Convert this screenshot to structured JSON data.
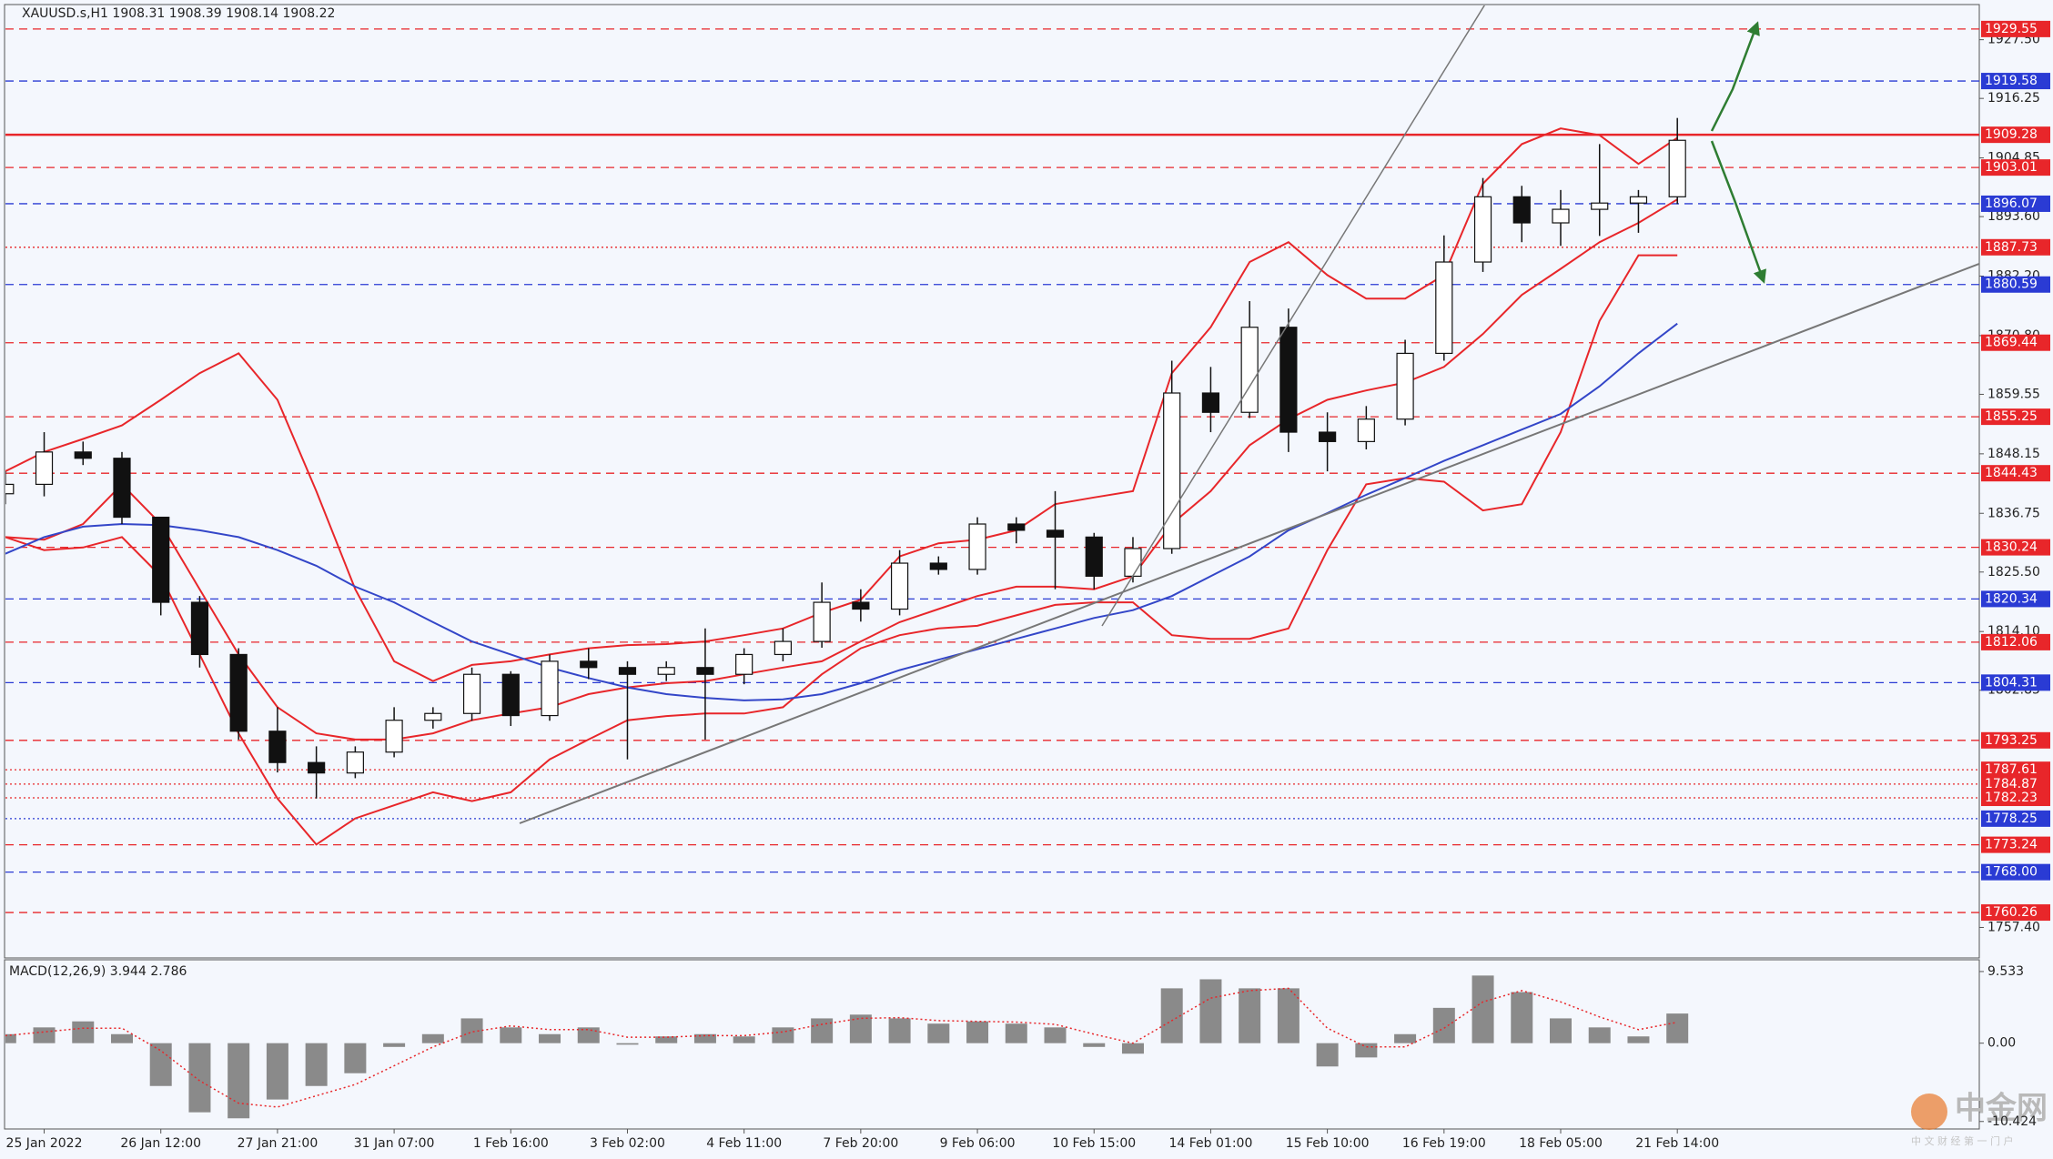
{
  "chart_data": [
    {
      "type": "candlestick",
      "symbol": "XAUUSD.s,H1",
      "quote": [
        1908.31,
        1908.39,
        1908.14,
        1908.22
      ],
      "categories": [
        null,
        "25 Jan 2022",
        null,
        null,
        "26 Jan 12:00",
        null,
        null,
        "27 Jan 21:00",
        null,
        null,
        "31 Jan 07:00",
        null,
        null,
        "1 Feb 16:00",
        null,
        null,
        "3 Feb 02:00",
        null,
        null,
        "4 Feb 11:00",
        null,
        null,
        "7 Feb 20:00",
        null,
        null,
        "9 Feb 06:00",
        null,
        null,
        "10 Feb 15:00",
        null,
        null,
        "14 Feb 01:00",
        null,
        null,
        "15 Feb 10:00",
        null,
        null,
        "16 Feb 19:00",
        null,
        null,
        "18 Feb 05:00",
        null,
        null,
        "21 Feb 14:00"
      ],
      "ohlc": [
        [
          1840.5,
          1844.8,
          1838.5,
          1842.3
        ],
        [
          1842.3,
          1852.3,
          1840,
          1848.5
        ],
        [
          1848.5,
          1850.5,
          1846,
          1847.3
        ],
        [
          1847.3,
          1848.5,
          1834.7,
          1836
        ],
        [
          1836,
          1836,
          1817.2,
          1819.7
        ],
        [
          1819.7,
          1820.9,
          1807.2,
          1809.7
        ],
        [
          1809.7,
          1810.9,
          1793.4,
          1795
        ],
        [
          1795,
          1799.6,
          1787.1,
          1789
        ],
        [
          1789,
          1792.1,
          1782.1,
          1787
        ],
        [
          1787,
          1792.1,
          1786,
          1791
        ],
        [
          1791,
          1799.6,
          1790,
          1797.1
        ],
        [
          1797.1,
          1799.6,
          1795.5,
          1798.4
        ],
        [
          1798.4,
          1807.2,
          1797,
          1805.9
        ],
        [
          1805.9,
          1806.5,
          1796,
          1798
        ],
        [
          1798,
          1809.7,
          1797,
          1808.4
        ],
        [
          1808.4,
          1810.9,
          1805,
          1807.2
        ],
        [
          1807.2,
          1808.4,
          1789.6,
          1805.9
        ],
        [
          1805.9,
          1808.4,
          1804.6,
          1807.2
        ],
        [
          1807.2,
          1814.7,
          1793.4,
          1805.9
        ],
        [
          1805.9,
          1810.9,
          1804,
          1809.7
        ],
        [
          1809.7,
          1814.7,
          1808.4,
          1812.2
        ],
        [
          1812.2,
          1823.5,
          1811,
          1819.7
        ],
        [
          1819.7,
          1822.2,
          1816,
          1818.4
        ],
        [
          1818.4,
          1829.7,
          1817.2,
          1827.2
        ],
        [
          1827.2,
          1828.5,
          1825,
          1826
        ],
        [
          1826,
          1836,
          1825,
          1834.7
        ],
        [
          1834.7,
          1836,
          1831,
          1833.5
        ],
        [
          1833.5,
          1841,
          1822.2,
          1832.2
        ],
        [
          1832.2,
          1833,
          1822.2,
          1824.7
        ],
        [
          1824.7,
          1832.2,
          1823.5,
          1830
        ],
        [
          1830,
          1866,
          1829,
          1859.8
        ],
        [
          1859.8,
          1864.8,
          1852.3,
          1856.1
        ],
        [
          1856.1,
          1877.4,
          1855,
          1872.4
        ],
        [
          1872.4,
          1876,
          1848.5,
          1852.3
        ],
        [
          1852.3,
          1856.1,
          1844.8,
          1850.5
        ],
        [
          1850.5,
          1857.3,
          1849,
          1854.8
        ],
        [
          1854.8,
          1870,
          1853.6,
          1867.4
        ],
        [
          1867.4,
          1890,
          1866,
          1884.9
        ],
        [
          1884.9,
          1901,
          1883,
          1897.4
        ],
        [
          1897.4,
          1899.5,
          1888.7,
          1892.4
        ],
        [
          1892.4,
          1898.7,
          1888,
          1895
        ],
        [
          1895,
          1907.5,
          1889.9,
          1896.2
        ],
        [
          1896.2,
          1898.7,
          1890.5,
          1897.4
        ],
        [
          1897.4,
          1912.5,
          1896,
          1908.22
        ]
      ],
      "overlays": [
        {
          "color": "#e8262a",
          "values": [
            1844.8,
            1848.5,
            1851.0,
            1853.6,
            1858.5,
            1863.6,
            1867.4,
            1858.5,
            1841.0,
            1822.2,
            1808.4,
            1804.6,
            1807.7,
            1808.4,
            1809.7,
            1810.9,
            1811.5,
            1811.7,
            1812.2,
            1813.4,
            1814.7,
            1817.7,
            1820.2,
            1828.5,
            1831.0,
            1831.7,
            1833.5,
            1838.5,
            1839.8,
            1841.0,
            1863.6,
            1872.4,
            1884.9,
            1888.7,
            1882.4,
            1877.9,
            1877.9,
            1882.4,
            1899.9,
            1907.5,
            1910.5,
            1909.2,
            1903.7,
            1908.7
          ]
        },
        {
          "color": "#e8262a",
          "values": [
            1832.2,
            1831.7,
            1834.7,
            1842.3,
            1834.7,
            1822.2,
            1809.7,
            1799.6,
            1794.6,
            1793.4,
            1793.4,
            1794.6,
            1797.1,
            1798.4,
            1799.6,
            1802.1,
            1803.4,
            1804.2,
            1804.6,
            1805.9,
            1807.2,
            1808.4,
            1812.2,
            1815.9,
            1818.4,
            1820.9,
            1822.7,
            1822.7,
            1822.2,
            1824.7,
            1834.7,
            1841.0,
            1849.8,
            1854.8,
            1858.5,
            1860.3,
            1861.8,
            1864.8,
            1871.1,
            1878.6,
            1883.6,
            1888.7,
            1892.4,
            1896.9
          ]
        },
        {
          "color": "#e8262a",
          "values": [
            1832.2,
            1829.7,
            1830.2,
            1832.2,
            1824.7,
            1809.7,
            1794.6,
            1782.1,
            1773.3,
            1778.3,
            1780.8,
            1783.3,
            1781.6,
            1783.3,
            1789.6,
            1793.4,
            1797.1,
            1797.9,
            1798.4,
            1798.4,
            1799.6,
            1805.9,
            1810.9,
            1813.4,
            1814.7,
            1815.2,
            1817.2,
            1819.2,
            1819.7,
            1819.7,
            1813.4,
            1812.7,
            1812.7,
            1814.7,
            1829.7,
            1842.3,
            1843.5,
            1842.8,
            1837.3,
            1838.5,
            1852.3,
            1873.6,
            1886.2,
            1886.2
          ]
        },
        {
          "color": "#3346c8",
          "values": [
            1829.0,
            1832.2,
            1834.2,
            1834.7,
            1834.5,
            1833.5,
            1832.2,
            1829.7,
            1826.7,
            1822.7,
            1819.7,
            1815.9,
            1812.2,
            1809.7,
            1807.2,
            1805.2,
            1803.4,
            1802.1,
            1801.4,
            1800.9,
            1801.1,
            1802.1,
            1804.2,
            1806.7,
            1808.7,
            1810.7,
            1812.7,
            1814.7,
            1816.7,
            1818.2,
            1820.9,
            1824.7,
            1828.5,
            1833.5,
            1836.8,
            1840.3,
            1843.5,
            1846.8,
            1849.8,
            1852.8,
            1855.8,
            1861.1,
            1867.4,
            1873.1
          ]
        }
      ],
      "levels": [
        {
          "value": 1929.55,
          "color": "#e8262a",
          "style": "dashed"
        },
        {
          "value": 1919.58,
          "color": "#2a3bd4",
          "style": "dashed"
        },
        {
          "value": 1909.28,
          "color": "#e8262a",
          "style": "solid"
        },
        {
          "value": 1903.01,
          "color": "#e8262a",
          "style": "dashed"
        },
        {
          "value": 1896.07,
          "color": "#2a3bd4",
          "style": "dashed"
        },
        {
          "value": 1887.73,
          "color": "#e8262a",
          "style": "dotted"
        },
        {
          "value": 1880.59,
          "color": "#2a3bd4",
          "style": "dashed"
        },
        {
          "value": 1869.44,
          "color": "#e8262a",
          "style": "dashed"
        },
        {
          "value": 1855.25,
          "color": "#e8262a",
          "style": "dashed"
        },
        {
          "value": 1844.43,
          "color": "#e8262a",
          "style": "dashed"
        },
        {
          "value": 1830.24,
          "color": "#e8262a",
          "style": "dashed"
        },
        {
          "value": 1820.34,
          "color": "#2a3bd4",
          "style": "dashed"
        },
        {
          "value": 1812.06,
          "color": "#e8262a",
          "style": "dashed"
        },
        {
          "value": 1804.31,
          "color": "#2a3bd4",
          "style": "dashed"
        },
        {
          "value": 1793.25,
          "color": "#e8262a",
          "style": "dashed"
        },
        {
          "value": 1787.61,
          "color": "#e8262a",
          "style": "dotted"
        },
        {
          "value": 1784.87,
          "color": "#e8262a",
          "style": "dotted"
        },
        {
          "value": 1782.23,
          "color": "#e8262a",
          "style": "dotted"
        },
        {
          "value": 1778.25,
          "color": "#2a3bd4",
          "style": "dotted"
        },
        {
          "value": 1773.24,
          "color": "#e8262a",
          "style": "dashed"
        },
        {
          "value": 1768.0,
          "label": "1768.00",
          "color": "#2a3bd4",
          "style": "dashed"
        },
        {
          "value": 1760.26,
          "color": "#e8262a",
          "style": "dashed"
        }
      ],
      "ylim": [
        1751.73,
        1934.06
      ],
      "yticks": [
        {
          "value": 1927.5,
          "label": "1927.50"
        },
        1916.25,
        1904.85,
        {
          "value": 1893.6,
          "label": "1893.60"
        },
        {
          "value": 1882.2,
          "label": "1882.20"
        },
        {
          "value": 1870.8,
          "label": "1870.80"
        },
        1859.55,
        1848.15,
        1836.75,
        {
          "value": 1825.5,
          "label": "1825.50"
        },
        {
          "value": 1814.1,
          "label": "1814.10"
        },
        1802.85,
        {
          "value": 1757.4,
          "label": "1757.40"
        }
      ]
    },
    {
      "type": "macd",
      "name": "MACD(12,26,9)",
      "series": [
        {
          "style": "bar",
          "color": "#8a8a8a",
          "values": [
            1.2,
            2.1,
            2.9,
            1.2,
            -5.7,
            -9.2,
            -10.0,
            -7.5,
            -5.7,
            -4.0,
            -0.5,
            1.2,
            3.3,
            2.1,
            1.2,
            2.1,
            -0.2,
            0.9,
            1.2,
            0.9,
            2.1,
            3.3,
            3.8,
            3.3,
            2.6,
            2.9,
            2.6,
            2.1,
            -0.5,
            -1.4,
            7.3,
            8.5,
            7.3,
            7.3,
            -3.1,
            -1.9,
            1.2,
            4.7,
            9.0,
            6.8,
            3.3,
            2.1,
            0.9,
            3.944
          ]
        },
        {
          "style": "dotted",
          "color": "#e8262a",
          "values": [
            1.0,
            1.5,
            2.0,
            2.0,
            -1.0,
            -5.0,
            -8.0,
            -8.5,
            -7.0,
            -5.5,
            -3.0,
            -0.5,
            1.5,
            2.3,
            1.8,
            1.8,
            0.8,
            0.8,
            1.0,
            1.0,
            1.5,
            2.5,
            3.3,
            3.4,
            3.0,
            2.9,
            2.8,
            2.5,
            1.2,
            0.0,
            3.0,
            6.0,
            7.0,
            7.3,
            2.0,
            -0.5,
            -0.5,
            2.0,
            5.5,
            7.0,
            5.5,
            3.5,
            1.8,
            2.786
          ]
        }
      ],
      "ylim": [
        -11.3,
        11.1
      ],
      "yticks": [
        9.533,
        {
          "value": 0,
          "label": "0.00"
        },
        -10.424
      ]
    }
  ],
  "watermark": {
    "title": "中金网",
    "subtitle": "中 文 财 经 第 一 门 户"
  }
}
